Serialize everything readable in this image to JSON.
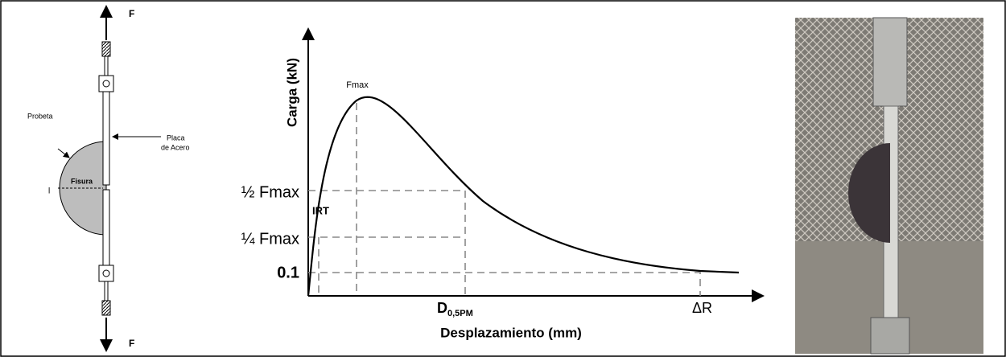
{
  "specimen": {
    "force_top": "F",
    "force_bottom": "F",
    "probeta": "Probeta",
    "placa": [
      "Placa",
      "de Acero"
    ],
    "fisura": "Fisura",
    "length_mark": "l"
  },
  "graph": {
    "y_axis_label": "Carga (kN)",
    "x_axis_label": "Desplazamiento (mm)",
    "peak_label": "Fmax",
    "levels": [
      "½ Fmax",
      "¼ Fmax",
      "0.1"
    ],
    "slope_label": "IRT",
    "displacement_label": {
      "main": "D",
      "sub": "0,5PM"
    },
    "end_label": "ΔR"
  }
}
